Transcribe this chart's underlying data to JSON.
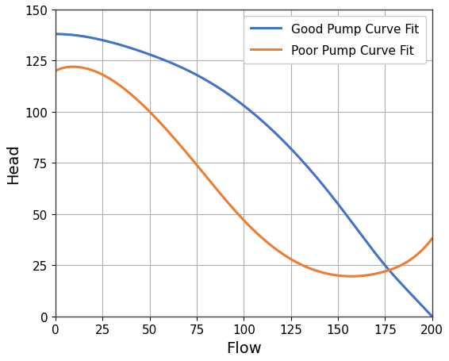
{
  "title": "",
  "xlabel": "Flow",
  "ylabel": "Head",
  "xlim": [
    0,
    200
  ],
  "ylim": [
    0,
    150
  ],
  "xticks": [
    0,
    25,
    50,
    75,
    100,
    125,
    150,
    175,
    200
  ],
  "yticks": [
    0,
    25,
    50,
    75,
    100,
    125,
    150
  ],
  "good_color": "#4472C4",
  "poor_color": "#ED7D31",
  "good_label": "Good Pump Curve Fit",
  "poor_label": "Poor Pump Curve Fit",
  "background_color": "#ffffff",
  "grid_color": "#b0b0b0",
  "linewidth": 2.2,
  "figsize": [
    5.66,
    4.56
  ],
  "dpi": 100,
  "legend_fontsize": 11,
  "axis_fontsize": 14
}
